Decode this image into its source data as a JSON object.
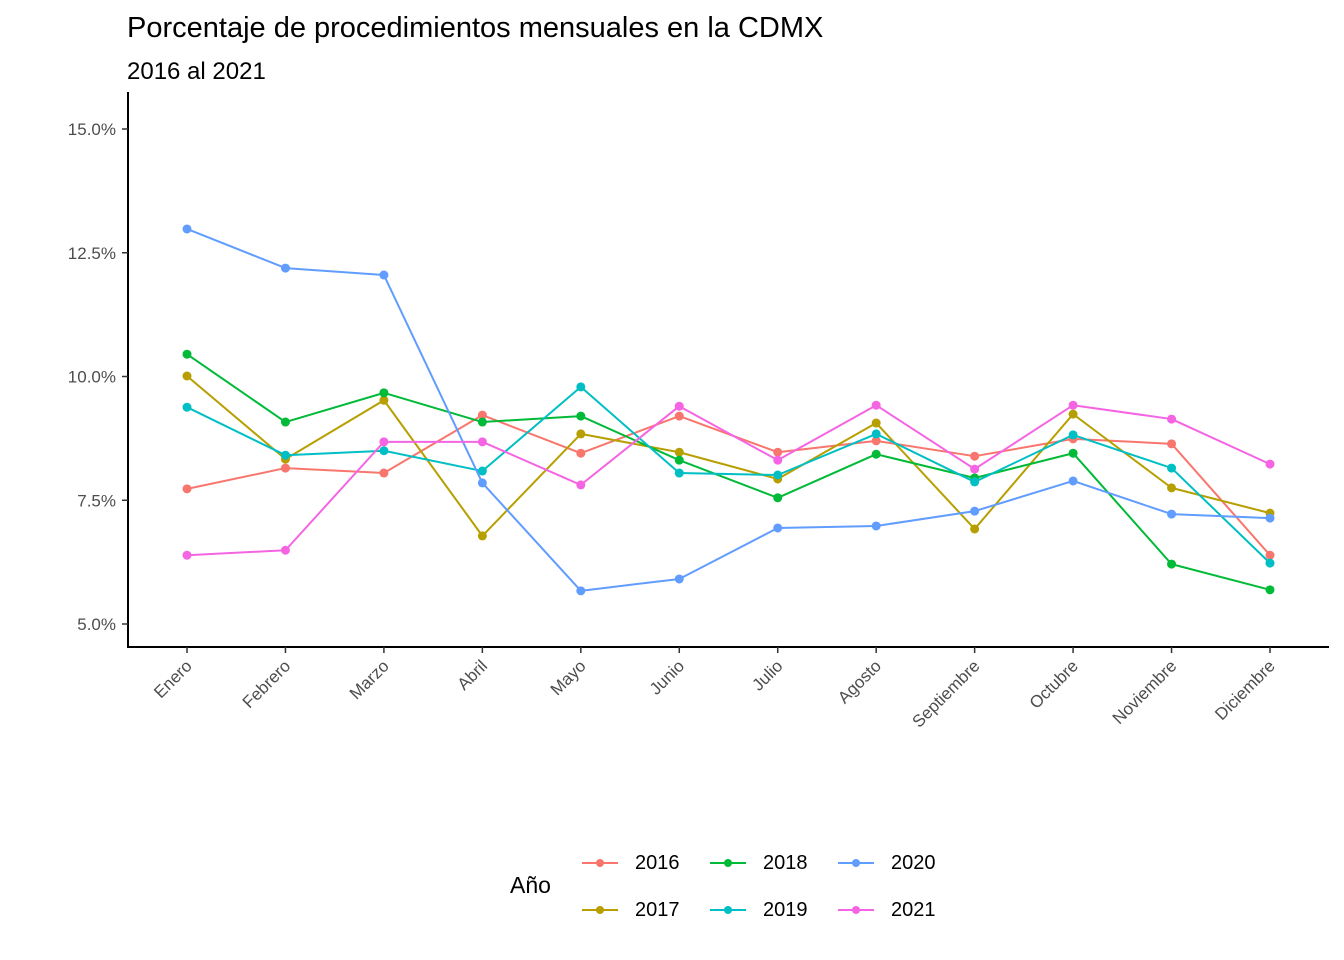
{
  "chart_data": {
    "type": "line",
    "title": "Porcentaje de procedimientos mensuales en la CDMX",
    "subtitle": "2016 al 2021",
    "xlabel": "",
    "ylabel": "",
    "ylim": [
      4.5,
      15.5
    ],
    "yticks": [
      5.0,
      7.5,
      10.0,
      12.5,
      15.0
    ],
    "ytick_labels": [
      "5.0%",
      "7.5%",
      "10.0%",
      "12.5%",
      "15.0%"
    ],
    "grid": false,
    "categories": [
      "Enero",
      "Febrero",
      "Marzo",
      "Abril",
      "Mayo",
      "Junio",
      "Julio",
      "Agosto",
      "Septiembre",
      "Octubre",
      "Noviembre",
      "Diciembre"
    ],
    "legend": {
      "title": "Año",
      "placement": "bottom"
    },
    "series": [
      {
        "name": "2016",
        "color": "#F8766D",
        "values": [
          7.73,
          8.15,
          8.05,
          9.22,
          8.45,
          9.2,
          8.47,
          8.7,
          8.39,
          8.74,
          8.64,
          6.39
        ]
      },
      {
        "name": "2017",
        "color": "#B79F00",
        "values": [
          10.01,
          8.33,
          9.52,
          6.78,
          8.84,
          8.47,
          7.93,
          9.06,
          6.92,
          9.24,
          7.75,
          7.24
        ]
      },
      {
        "name": "2018",
        "color": "#00BA38",
        "values": [
          10.45,
          9.08,
          9.67,
          9.08,
          9.2,
          8.31,
          7.55,
          8.43,
          7.95,
          8.45,
          6.21,
          5.69
        ]
      },
      {
        "name": "2019",
        "color": "#00BFC4",
        "values": [
          9.38,
          8.41,
          8.5,
          8.09,
          9.79,
          8.05,
          8.01,
          8.84,
          7.87,
          8.82,
          8.15,
          6.23
        ]
      },
      {
        "name": "2020",
        "color": "#619CFF",
        "values": [
          12.98,
          12.19,
          12.05,
          7.85,
          5.67,
          5.91,
          6.94,
          6.98,
          7.28,
          7.89,
          7.22,
          7.14
        ]
      },
      {
        "name": "2021",
        "color": "#F564E3",
        "values": [
          6.39,
          6.49,
          8.68,
          8.68,
          7.81,
          9.4,
          8.31,
          9.42,
          8.13,
          9.42,
          9.14,
          8.23
        ]
      }
    ]
  }
}
